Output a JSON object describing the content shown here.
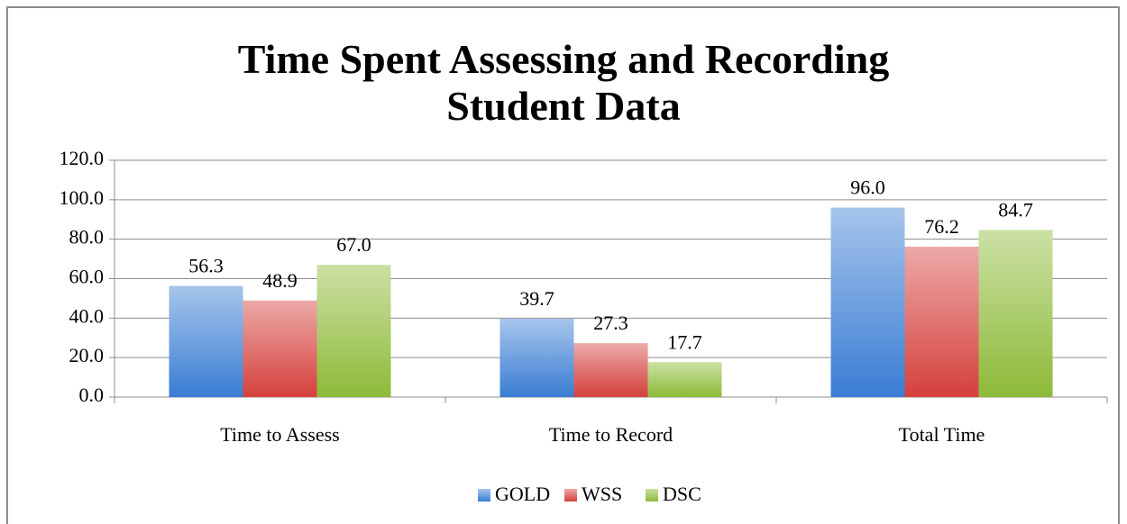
{
  "chart_data": {
    "type": "bar",
    "title": "Time Spent Assessing and Recording Student Data",
    "categories": [
      "Time to Assess",
      "Time to Record",
      "Total Time"
    ],
    "series": [
      {
        "name": "GOLD",
        "color": "#3a7dd3",
        "values": [
          56.3,
          39.7,
          96.0
        ],
        "value_labels": [
          "56.3",
          "39.7",
          "96.0"
        ]
      },
      {
        "name": "WSS",
        "color": "#d5403c",
        "values": [
          48.9,
          27.3,
          76.2
        ],
        "value_labels": [
          "48.9",
          "27.3",
          "76.2"
        ]
      },
      {
        "name": "DSC",
        "color": "#8dba38",
        "values": [
          67.0,
          17.7,
          84.7
        ],
        "value_labels": [
          "67.0",
          "17.7",
          "84.7"
        ]
      }
    ],
    "ylim": [
      0,
      120
    ],
    "yticks": [
      {
        "value": 0,
        "label": "0.0"
      },
      {
        "value": 20,
        "label": "20.0"
      },
      {
        "value": 40,
        "label": "40.0"
      },
      {
        "value": 60,
        "label": "60.0"
      },
      {
        "value": 80,
        "label": "80.0"
      },
      {
        "value": 100,
        "label": "100.0"
      },
      {
        "value": 120,
        "label": "120.0"
      }
    ],
    "grid": true,
    "legend": "bottom"
  }
}
